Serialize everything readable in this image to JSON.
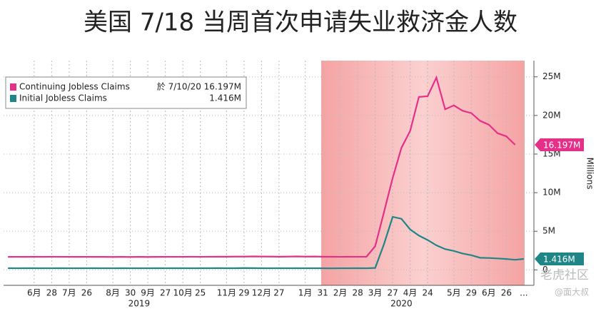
{
  "chart_data": {
    "type": "line",
    "title": "美国 7/18 当周首次申请失业救济金人数",
    "y_label": "Millions",
    "categories": [
      null,
      null,
      null,
      "6月",
      null,
      "28",
      null,
      "7月",
      null,
      "26",
      null,
      null,
      "8月",
      null,
      "30",
      null,
      "9月",
      null,
      "27",
      null,
      "10月",
      null,
      "25",
      null,
      null,
      "11月",
      null,
      "29",
      null,
      "12月",
      null,
      "27",
      null,
      null,
      "1月",
      null,
      "31",
      null,
      "2月",
      null,
      "28",
      null,
      "3月",
      null,
      "27",
      null,
      "4月",
      null,
      "24",
      null,
      null,
      "5月",
      null,
      "29",
      null,
      "6月",
      null,
      "26",
      null,
      "..."
    ],
    "year_labels": [
      "2019",
      "2020"
    ],
    "series": [
      {
        "name": "Continuing Jobless Claims",
        "legend_note": "於 7/10/20 16.197M",
        "color": "#e5308a",
        "values": [
          1.68,
          1.69,
          1.68,
          1.7,
          1.69,
          1.7,
          1.69,
          1.69,
          1.68,
          1.69,
          1.68,
          1.68,
          1.67,
          1.68,
          1.67,
          1.68,
          1.67,
          1.68,
          1.69,
          1.69,
          1.69,
          1.7,
          1.69,
          1.7,
          1.71,
          1.71,
          1.72,
          1.72,
          1.74,
          1.73,
          1.72,
          1.71,
          1.72,
          1.74,
          1.72,
          1.73,
          1.71,
          1.7,
          1.69,
          1.7,
          1.7,
          1.7,
          3.06,
          7.45,
          11.9,
          15.8,
          18.0,
          22.4,
          22.5,
          24.9,
          20.8,
          21.3,
          20.6,
          20.3,
          19.3,
          18.8,
          17.7,
          17.3,
          16.197,
          null
        ],
        "value_labels": [
          null,
          null,
          null,
          null,
          null,
          null,
          null,
          null,
          null,
          null,
          null,
          null,
          null,
          null,
          null,
          null,
          null,
          null,
          null,
          null,
          null,
          null,
          null,
          null,
          null,
          null,
          null,
          null,
          null,
          null,
          null,
          null,
          null,
          null,
          null,
          null,
          null,
          null,
          null,
          null,
          null,
          null,
          null,
          null,
          null,
          null,
          null,
          null,
          null,
          null,
          null,
          null,
          null,
          null,
          null,
          null,
          null,
          null,
          "16.197M",
          null
        ]
      },
      {
        "name": "Initial Jobless Claims",
        "legend_note": "1.416M",
        "color": "#1f8587",
        "values": [
          0.22,
          0.21,
          0.22,
          0.22,
          0.21,
          0.21,
          0.22,
          0.21,
          0.21,
          0.21,
          0.22,
          0.21,
          0.21,
          0.22,
          0.21,
          0.21,
          0.21,
          0.22,
          0.21,
          0.22,
          0.22,
          0.21,
          0.22,
          0.22,
          0.23,
          0.22,
          0.22,
          0.24,
          0.23,
          0.22,
          0.21,
          0.22,
          0.21,
          0.22,
          0.21,
          0.21,
          0.21,
          0.2,
          0.21,
          0.21,
          0.22,
          0.21,
          0.25,
          3.31,
          6.87,
          6.62,
          5.24,
          4.44,
          3.87,
          3.18,
          2.69,
          2.45,
          2.12,
          1.9,
          1.57,
          1.54,
          1.48,
          1.41,
          1.31,
          1.416
        ],
        "value_labels": [
          null,
          null,
          null,
          null,
          null,
          null,
          null,
          null,
          null,
          null,
          null,
          null,
          null,
          null,
          null,
          null,
          null,
          null,
          null,
          null,
          null,
          null,
          null,
          null,
          null,
          null,
          null,
          null,
          null,
          null,
          null,
          null,
          null,
          null,
          null,
          null,
          null,
          null,
          null,
          null,
          null,
          null,
          null,
          null,
          null,
          null,
          null,
          null,
          null,
          null,
          null,
          null,
          null,
          null,
          null,
          null,
          null,
          null,
          null,
          "1.416M"
        ]
      }
    ],
    "ylim": [
      -2,
      27.1
    ],
    "yticks": [
      0,
      {
        "value": 5,
        "label": "5M"
      },
      {
        "value": 10,
        "label": "10M"
      },
      {
        "value": 15,
        "label": "15M"
      },
      {
        "value": 20,
        "label": "20M"
      },
      {
        "value": 25,
        "label": "25M"
      }
    ],
    "grid": true,
    "watermark": [
      "老虎社区",
      "@面大叔"
    ]
  }
}
